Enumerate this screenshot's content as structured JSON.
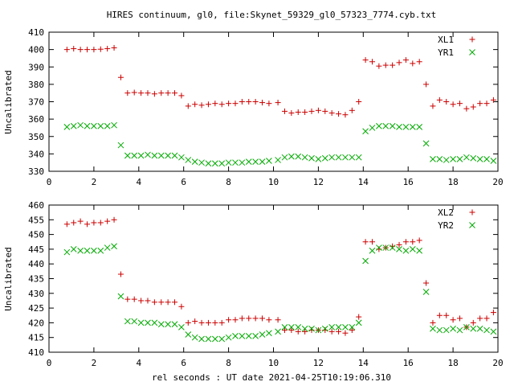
{
  "title": "HIRES continuum, gl0, file:Skynet_59329_gl0_57323_7774.cyb.txt",
  "xlabel": "rel seconds : UT date 2021-04-25T10:19:06.310",
  "chart_data": [
    {
      "type": "scatter",
      "ylabel": "Uncalibrated",
      "xlim": [
        0,
        20
      ],
      "ylim": [
        330,
        410
      ],
      "xticks": [
        0,
        2,
        4,
        6,
        8,
        10,
        12,
        14,
        16,
        18,
        20
      ],
      "yticks": [
        330,
        340,
        350,
        360,
        370,
        380,
        390,
        400,
        410
      ],
      "legend_position": "top-right",
      "series": [
        {
          "name": "XL1",
          "marker": "plus",
          "color": "#cc0000",
          "points": [
            [
              0.8,
              400
            ],
            [
              1.1,
              400.5
            ],
            [
              1.4,
              400
            ],
            [
              1.7,
              400
            ],
            [
              2.0,
              400
            ],
            [
              2.3,
              400.2
            ],
            [
              2.6,
              400.5
            ],
            [
              2.9,
              401
            ],
            [
              3.2,
              384
            ],
            [
              3.5,
              375
            ],
            [
              3.8,
              375.3
            ],
            [
              4.1,
              375
            ],
            [
              4.4,
              375
            ],
            [
              4.7,
              374.5
            ],
            [
              5.0,
              375
            ],
            [
              5.3,
              375
            ],
            [
              5.6,
              375
            ],
            [
              5.9,
              373.5
            ],
            [
              6.2,
              367.5
            ],
            [
              6.5,
              368.5
            ],
            [
              6.8,
              368
            ],
            [
              7.1,
              368.5
            ],
            [
              7.4,
              369
            ],
            [
              7.7,
              368.5
            ],
            [
              8.0,
              369
            ],
            [
              8.3,
              369
            ],
            [
              8.6,
              370
            ],
            [
              8.9,
              370
            ],
            [
              9.2,
              370
            ],
            [
              9.5,
              369.5
            ],
            [
              9.8,
              369
            ],
            [
              10.2,
              369.5
            ],
            [
              10.5,
              364.5
            ],
            [
              10.8,
              363.5
            ],
            [
              11.1,
              364
            ],
            [
              11.4,
              364
            ],
            [
              11.7,
              364.5
            ],
            [
              12.0,
              365
            ],
            [
              12.3,
              364.5
            ],
            [
              12.6,
              363.5
            ],
            [
              12.9,
              363
            ],
            [
              13.2,
              362.5
            ],
            [
              13.5,
              365
            ],
            [
              13.8,
              370
            ],
            [
              14.1,
              394
            ],
            [
              14.4,
              393
            ],
            [
              14.7,
              390.5
            ],
            [
              15.0,
              391
            ],
            [
              15.3,
              391
            ],
            [
              15.6,
              392.5
            ],
            [
              15.9,
              394
            ],
            [
              16.2,
              392
            ],
            [
              16.5,
              393
            ],
            [
              16.8,
              380
            ],
            [
              17.1,
              367.5
            ],
            [
              17.4,
              371
            ],
            [
              17.7,
              370
            ],
            [
              18.0,
              368.5
            ],
            [
              18.3,
              369
            ],
            [
              18.6,
              366
            ],
            [
              18.9,
              367
            ],
            [
              19.2,
              369
            ],
            [
              19.5,
              369
            ],
            [
              19.8,
              371
            ]
          ]
        },
        {
          "name": "YR1",
          "marker": "cross",
          "color": "#00aa00",
          "points": [
            [
              0.8,
              355.5
            ],
            [
              1.1,
              356
            ],
            [
              1.4,
              356.5
            ],
            [
              1.7,
              356
            ],
            [
              2.0,
              356
            ],
            [
              2.3,
              356
            ],
            [
              2.6,
              356
            ],
            [
              2.9,
              356.5
            ],
            [
              3.2,
              345
            ],
            [
              3.5,
              339
            ],
            [
              3.8,
              339
            ],
            [
              4.1,
              339
            ],
            [
              4.4,
              339.5
            ],
            [
              4.7,
              339
            ],
            [
              5.0,
              339
            ],
            [
              5.3,
              339
            ],
            [
              5.6,
              339
            ],
            [
              5.9,
              338
            ],
            [
              6.2,
              336.5
            ],
            [
              6.5,
              335.5
            ],
            [
              6.8,
              335
            ],
            [
              7.1,
              334.5
            ],
            [
              7.4,
              334.5
            ],
            [
              7.7,
              334.5
            ],
            [
              8.0,
              335
            ],
            [
              8.3,
              335
            ],
            [
              8.6,
              335
            ],
            [
              8.9,
              335.5
            ],
            [
              9.2,
              335.5
            ],
            [
              9.5,
              335.5
            ],
            [
              9.8,
              336
            ],
            [
              10.2,
              336.5
            ],
            [
              10.5,
              338
            ],
            [
              10.8,
              338.5
            ],
            [
              11.1,
              338.5
            ],
            [
              11.4,
              338
            ],
            [
              11.7,
              337.5
            ],
            [
              12.0,
              337
            ],
            [
              12.3,
              337.5
            ],
            [
              12.6,
              338
            ],
            [
              12.9,
              338
            ],
            [
              13.2,
              338
            ],
            [
              13.5,
              338
            ],
            [
              13.8,
              338
            ],
            [
              14.1,
              353
            ],
            [
              14.4,
              355
            ],
            [
              14.7,
              356
            ],
            [
              15.0,
              356
            ],
            [
              15.3,
              356
            ],
            [
              15.6,
              355.5
            ],
            [
              15.9,
              355.5
            ],
            [
              16.2,
              355.5
            ],
            [
              16.5,
              355.5
            ],
            [
              16.8,
              346
            ],
            [
              17.1,
              337
            ],
            [
              17.4,
              337
            ],
            [
              17.7,
              336.5
            ],
            [
              18.0,
              337
            ],
            [
              18.3,
              337
            ],
            [
              18.6,
              338
            ],
            [
              18.9,
              337.5
            ],
            [
              19.2,
              337
            ],
            [
              19.5,
              337
            ],
            [
              19.8,
              336
            ]
          ]
        }
      ]
    },
    {
      "type": "scatter",
      "ylabel": "Uncalibrated",
      "xlim": [
        0,
        20
      ],
      "ylim": [
        410,
        460
      ],
      "xticks": [
        0,
        2,
        4,
        6,
        8,
        10,
        12,
        14,
        16,
        18,
        20
      ],
      "yticks": [
        410,
        415,
        420,
        425,
        430,
        435,
        440,
        445,
        450,
        455,
        460
      ],
      "legend_position": "top-right",
      "series": [
        {
          "name": "XL2",
          "marker": "plus",
          "color": "#cc0000",
          "points": [
            [
              0.8,
              453.5
            ],
            [
              1.1,
              454
            ],
            [
              1.4,
              454.5
            ],
            [
              1.7,
              453.5
            ],
            [
              2.0,
              454
            ],
            [
              2.3,
              454
            ],
            [
              2.6,
              454.5
            ],
            [
              2.9,
              455
            ],
            [
              3.2,
              436.5
            ],
            [
              3.5,
              428
            ],
            [
              3.8,
              428
            ],
            [
              4.1,
              427.5
            ],
            [
              4.4,
              427.5
            ],
            [
              4.7,
              427
            ],
            [
              5.0,
              427
            ],
            [
              5.3,
              427
            ],
            [
              5.6,
              427
            ],
            [
              5.9,
              425.5
            ],
            [
              6.2,
              420
            ],
            [
              6.5,
              420.5
            ],
            [
              6.8,
              420
            ],
            [
              7.1,
              420
            ],
            [
              7.4,
              420
            ],
            [
              7.7,
              420
            ],
            [
              8.0,
              421
            ],
            [
              8.3,
              421
            ],
            [
              8.6,
              421.5
            ],
            [
              8.9,
              421.5
            ],
            [
              9.2,
              421.5
            ],
            [
              9.5,
              421.5
            ],
            [
              9.8,
              421
            ],
            [
              10.2,
              421
            ],
            [
              10.5,
              417.5
            ],
            [
              10.8,
              417.5
            ],
            [
              11.1,
              417
            ],
            [
              11.4,
              417
            ],
            [
              11.7,
              417.5
            ],
            [
              12.0,
              417.5
            ],
            [
              12.3,
              417.5
            ],
            [
              12.6,
              417
            ],
            [
              12.9,
              417
            ],
            [
              13.2,
              416.5
            ],
            [
              13.5,
              417.5
            ],
            [
              13.8,
              422
            ],
            [
              14.1,
              447.5
            ],
            [
              14.4,
              447.5
            ],
            [
              14.7,
              445
            ],
            [
              15.0,
              445.5
            ],
            [
              15.3,
              446
            ],
            [
              15.6,
              446.5
            ],
            [
              15.9,
              447.5
            ],
            [
              16.2,
              447.5
            ],
            [
              16.5,
              448
            ],
            [
              16.8,
              433.5
            ],
            [
              17.1,
              420
            ],
            [
              17.4,
              422.5
            ],
            [
              17.7,
              422.5
            ],
            [
              18.0,
              421
            ],
            [
              18.3,
              421.5
            ],
            [
              18.6,
              418.5
            ],
            [
              18.9,
              420
            ],
            [
              19.2,
              421.5
            ],
            [
              19.5,
              421.5
            ],
            [
              19.8,
              423.5
            ]
          ]
        },
        {
          "name": "YR2",
          "marker": "cross",
          "color": "#00aa00",
          "points": [
            [
              0.8,
              444
            ],
            [
              1.1,
              445
            ],
            [
              1.4,
              444.5
            ],
            [
              1.7,
              444.5
            ],
            [
              2.0,
              444.5
            ],
            [
              2.3,
              444.5
            ],
            [
              2.6,
              445.5
            ],
            [
              2.9,
              446
            ],
            [
              3.2,
              429
            ],
            [
              3.5,
              420.5
            ],
            [
              3.8,
              420.5
            ],
            [
              4.1,
              420
            ],
            [
              4.4,
              420
            ],
            [
              4.7,
              420
            ],
            [
              5.0,
              419.5
            ],
            [
              5.3,
              419.5
            ],
            [
              5.6,
              419.5
            ],
            [
              5.9,
              418.5
            ],
            [
              6.2,
              416
            ],
            [
              6.5,
              415
            ],
            [
              6.8,
              414.5
            ],
            [
              7.1,
              414.5
            ],
            [
              7.4,
              414.5
            ],
            [
              7.7,
              414.5
            ],
            [
              8.0,
              415
            ],
            [
              8.3,
              415.5
            ],
            [
              8.6,
              415.5
            ],
            [
              8.9,
              415.5
            ],
            [
              9.2,
              415.5
            ],
            [
              9.5,
              416
            ],
            [
              9.8,
              416.5
            ],
            [
              10.2,
              417
            ],
            [
              10.5,
              418.5
            ],
            [
              10.8,
              418.5
            ],
            [
              11.1,
              418.5
            ],
            [
              11.4,
              418
            ],
            [
              11.7,
              418
            ],
            [
              12.0,
              417.5
            ],
            [
              12.3,
              418
            ],
            [
              12.6,
              418.5
            ],
            [
              12.9,
              418.5
            ],
            [
              13.2,
              418.5
            ],
            [
              13.5,
              418.5
            ],
            [
              13.8,
              420
            ],
            [
              14.1,
              441
            ],
            [
              14.4,
              444.5
            ],
            [
              14.7,
              445.5
            ],
            [
              15.0,
              445.5
            ],
            [
              15.3,
              445.5
            ],
            [
              15.6,
              445
            ],
            [
              15.9,
              444.5
            ],
            [
              16.2,
              445
            ],
            [
              16.5,
              444.5
            ],
            [
              16.8,
              430.5
            ],
            [
              17.1,
              418
            ],
            [
              17.4,
              417.5
            ],
            [
              17.7,
              417.5
            ],
            [
              18.0,
              418
            ],
            [
              18.3,
              417.5
            ],
            [
              18.6,
              418.5
            ],
            [
              18.9,
              418
            ],
            [
              19.2,
              418
            ],
            [
              19.5,
              417.5
            ],
            [
              19.8,
              417
            ]
          ]
        }
      ]
    }
  ]
}
